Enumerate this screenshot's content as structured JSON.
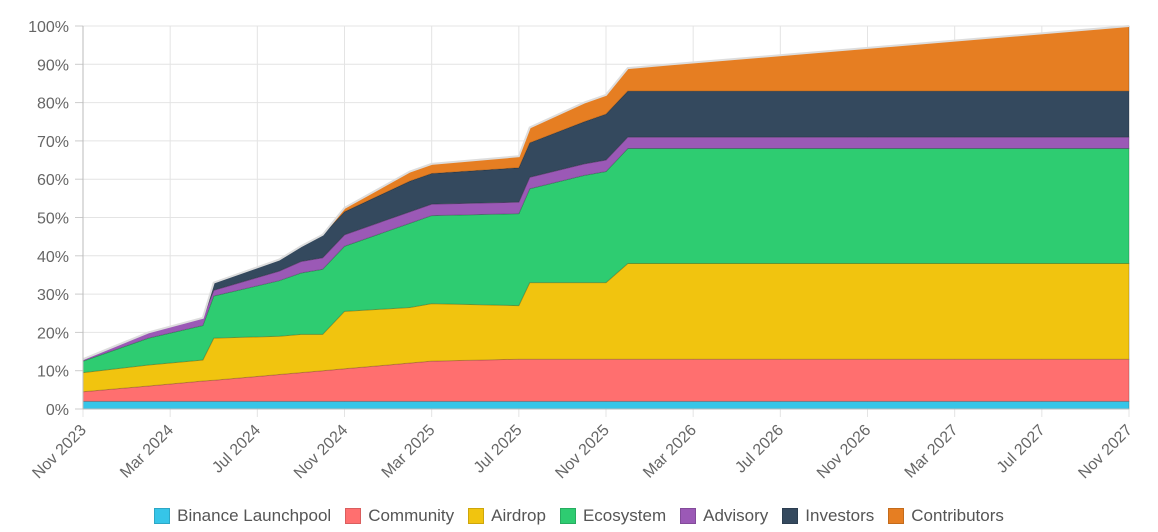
{
  "chart_data": {
    "type": "area",
    "stacked": true,
    "title": "",
    "xlabel": "",
    "ylabel": "",
    "ylim": [
      0,
      100
    ],
    "y_ticks": [
      "0%",
      "10%",
      "20%",
      "30%",
      "40%",
      "50%",
      "60%",
      "70%",
      "80%",
      "90%",
      "100%"
    ],
    "x_ticks": [
      "Nov 2023",
      "Mar 2024",
      "Jul 2024",
      "Nov 2024",
      "Mar 2025",
      "Jul 2025",
      "Nov 2025",
      "Mar 2026",
      "Jul 2026",
      "Nov 2026",
      "Mar 2027",
      "Jul 2027",
      "Nov 2027"
    ],
    "x": [
      0,
      3,
      5.5,
      6,
      9,
      10,
      11,
      12,
      15,
      16,
      20,
      20.5,
      23,
      24,
      25,
      27,
      48
    ],
    "series": [
      {
        "name": "Binance Launchpool",
        "color": "#36c5e8",
        "values": [
          2,
          2,
          2,
          2,
          2,
          2,
          2,
          2,
          2,
          2,
          2,
          2,
          2,
          2,
          2,
          2,
          2
        ]
      },
      {
        "name": "Community",
        "color": "#ff6f6f",
        "values": [
          2.5,
          4,
          5.3,
          5.5,
          7,
          7.5,
          8,
          8.5,
          10,
          10.5,
          11,
          11,
          11,
          11,
          11,
          11,
          11
        ]
      },
      {
        "name": "Airdrop",
        "color": "#f1c40f",
        "values": [
          5,
          5.5,
          5.5,
          11,
          10,
          10,
          9.5,
          15,
          14.5,
          15,
          14,
          20,
          20,
          20,
          25,
          25,
          25
        ]
      },
      {
        "name": "Ecosystem",
        "color": "#2ecc71",
        "values": [
          3,
          7,
          9,
          11,
          14.5,
          16,
          17,
          17,
          22,
          23,
          24,
          24.5,
          28,
          29,
          30,
          30,
          30
        ]
      },
      {
        "name": "Advisory",
        "color": "#9b59b6",
        "values": [
          0.5,
          1.5,
          2,
          1.5,
          2.5,
          3,
          3,
          3,
          3,
          3,
          3,
          3,
          3,
          3,
          3,
          3,
          3
        ]
      },
      {
        "name": "Investors",
        "color": "#34495e",
        "values": [
          0,
          0,
          0,
          2,
          3,
          4,
          6,
          6,
          8,
          8,
          9,
          9,
          11,
          12,
          12,
          12,
          12
        ]
      },
      {
        "name": "Contributors",
        "color": "#e67e22",
        "values": [
          0,
          0,
          0,
          0,
          0,
          0,
          0,
          1,
          2.5,
          2.5,
          3,
          4,
          5,
          5,
          6,
          7,
          17
        ]
      }
    ]
  }
}
